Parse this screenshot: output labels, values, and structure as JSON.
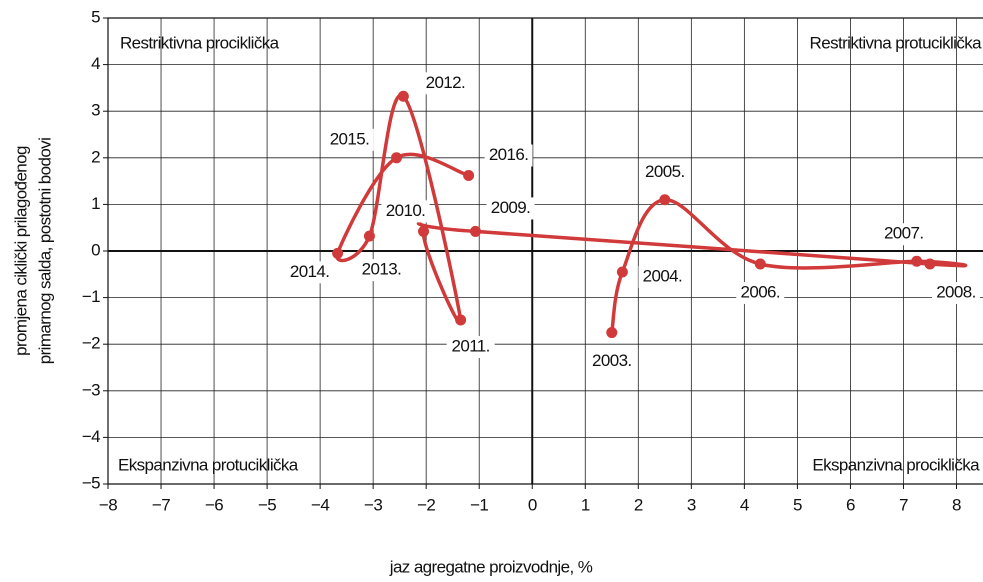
{
  "chart_data": {
    "type": "line",
    "xlabel": "jaz agregatne proizvodnje, %",
    "ylabel": [
      "promjena ciklički prilagođenog",
      "primarnog salda, postotni bodovi"
    ],
    "annotations": [
      "Restriktivna prociklička",
      "Restriktivna protuciklička",
      "Ekspanzivna protuciklička",
      "Ekspanzivna prociklička"
    ],
    "labels": [
      "2003.",
      "2004.",
      "2005.",
      "2006.",
      "2007.",
      "2008.",
      "2009.",
      "2010.",
      "2011.",
      "2012.",
      "2013.",
      "2014.",
      "2015.",
      "2016."
    ],
    "x": [
      1.5,
      1.7,
      2.5,
      4.3,
      7.25,
      7.5,
      -1.07,
      -2.05,
      -1.35,
      -2.43,
      -3.07,
      -3.67,
      -2.56,
      -1.2
    ],
    "values": [
      -1.75,
      -0.45,
      1.1,
      -0.28,
      -0.22,
      -0.28,
      0.42,
      0.42,
      -1.48,
      3.32,
      0.32,
      -0.05,
      2.0,
      1.62
    ],
    "color": "#d13a3a",
    "xlim": [
      -8,
      8.5
    ],
    "ylim": [
      -5,
      5
    ],
    "xticks": [
      {
        "value": -8,
        "label": "−8"
      },
      {
        "value": -7,
        "label": "−7"
      },
      {
        "value": -6,
        "label": "−6"
      },
      {
        "value": -5,
        "label": "−5"
      },
      {
        "value": -4,
        "label": "−4"
      },
      {
        "value": -3,
        "label": "−3"
      },
      {
        "value": -2,
        "label": "−2"
      },
      {
        "value": -1,
        "label": "−1"
      },
      0,
      1,
      2,
      3,
      4,
      5,
      6,
      7,
      8
    ],
    "yticks": [
      {
        "value": -5,
        "label": "−5"
      },
      {
        "value": -4,
        "label": "−4"
      },
      {
        "value": -3,
        "label": "−3"
      },
      {
        "value": -2,
        "label": "−2"
      },
      {
        "value": -1,
        "label": "−1"
      },
      0,
      1,
      2,
      3,
      4,
      5
    ],
    "grid": true
  }
}
